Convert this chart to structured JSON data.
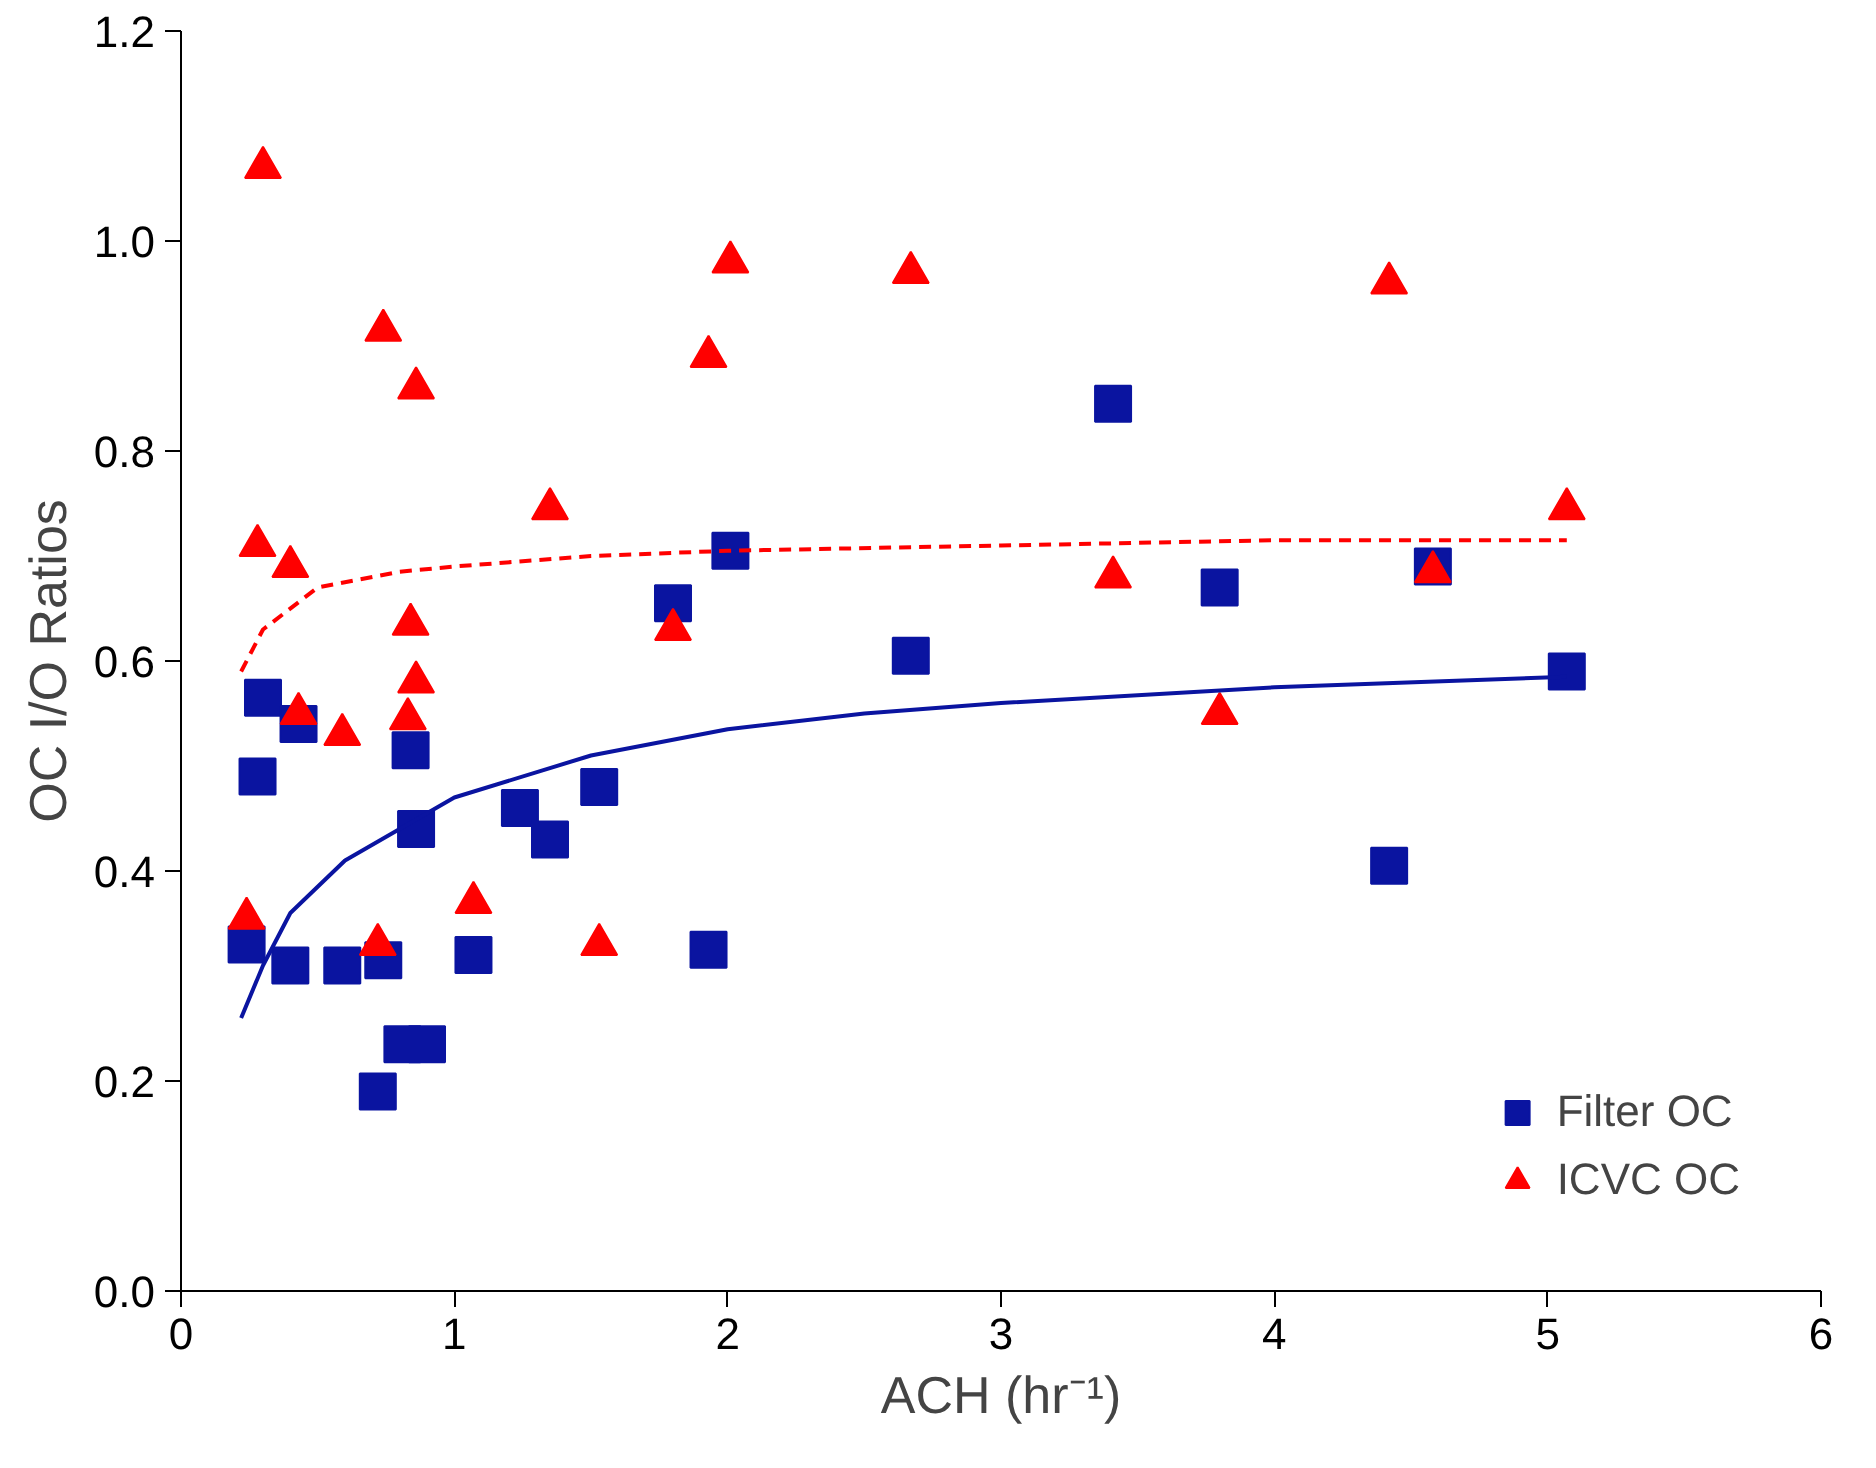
{
  "chart_data": {
    "type": "scatter",
    "xlabel": "ACH (hr⁻¹)",
    "ylabel": "OC I/O Ratios",
    "xlim": [
      0,
      6
    ],
    "ylim": [
      0,
      1.2
    ],
    "xticks": [
      0,
      1,
      2,
      3,
      4,
      5,
      6
    ],
    "yticks": [
      {
        "value": 0,
        "label": "0.0"
      },
      0.2,
      0.4,
      0.6,
      0.8,
      {
        "value": 1,
        "label": "1.0"
      },
      1.2
    ],
    "grid": false,
    "legend": "bottom right",
    "series": [
      {
        "name": "Filter OC",
        "color": "#0a14a0",
        "marker": "square",
        "x": [
          0.24,
          0.28,
          0.3,
          0.43,
          0.4,
          0.59,
          0.74,
          0.72,
          0.81,
          0.9,
          0.84,
          0.86,
          1.07,
          1.24,
          1.35,
          1.53,
          1.8,
          1.93,
          2.01,
          2.67,
          3.41,
          3.8,
          4.42,
          4.58,
          5.07
        ],
        "values": [
          0.33,
          0.49,
          0.565,
          0.54,
          0.31,
          0.31,
          0.315,
          0.19,
          0.235,
          0.235,
          0.515,
          0.44,
          0.32,
          0.46,
          0.43,
          0.48,
          0.655,
          0.325,
          0.705,
          0.605,
          0.845,
          0.67,
          0.405,
          0.69,
          0.59
        ]
      },
      {
        "name": "ICVC OC",
        "color": "#ff0000",
        "marker": "triangle",
        "x": [
          0.24,
          0.3,
          0.28,
          0.4,
          0.43,
          0.59,
          0.72,
          0.74,
          0.83,
          0.84,
          0.86,
          0.86,
          1.07,
          1.35,
          1.53,
          1.8,
          1.93,
          2.01,
          2.67,
          3.41,
          3.8,
          4.42,
          4.58,
          5.07
        ],
        "values": [
          0.355,
          1.07,
          0.71,
          0.69,
          0.55,
          0.53,
          0.33,
          0.915,
          0.545,
          0.635,
          0.58,
          0.86,
          0.37,
          0.745,
          0.33,
          0.63,
          0.89,
          0.98,
          0.97,
          0.68,
          0.55,
          0.96,
          0.685,
          0.745
        ]
      },
      {
        "type": "line",
        "color": "#0a14a0",
        "line_style": "solid",
        "x": [
          0.22,
          0.3,
          0.4,
          0.6,
          0.8,
          1.0,
          1.5,
          2.0,
          2.5,
          3.0,
          4.0,
          5.07
        ],
        "values": [
          0.26,
          0.31,
          0.36,
          0.41,
          0.44,
          0.47,
          0.51,
          0.535,
          0.55,
          0.56,
          0.575,
          0.585
        ]
      },
      {
        "type": "line",
        "color": "#ff0000",
        "line_style": "dashed",
        "x": [
          0.22,
          0.3,
          0.5,
          0.8,
          1.0,
          1.5,
          2.0,
          3.0,
          4.0,
          5.07
        ],
        "values": [
          0.59,
          0.63,
          0.67,
          0.685,
          0.69,
          0.7,
          0.705,
          0.71,
          0.715,
          0.715
        ]
      }
    ]
  }
}
